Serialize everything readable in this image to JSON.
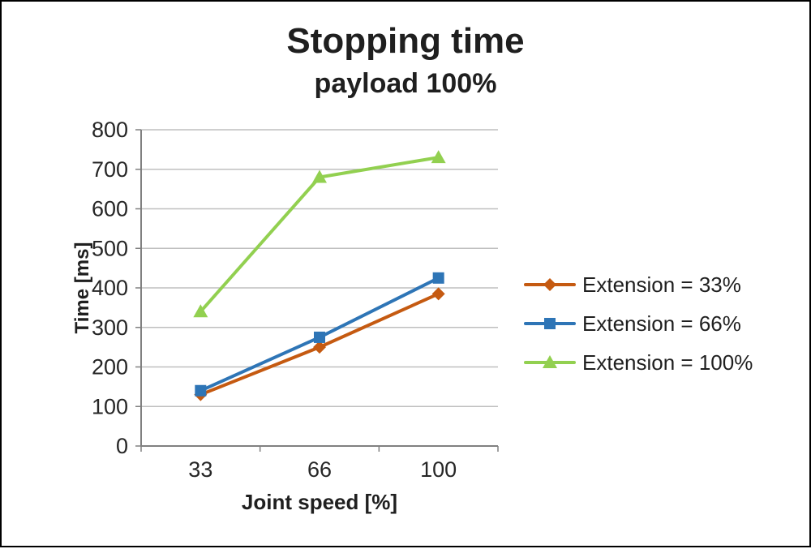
{
  "title": "Stopping time",
  "subtitle": "payload 100%",
  "chart_data": {
    "type": "line",
    "title": "Stopping time",
    "subtitle": "payload 100%",
    "xlabel": "Joint speed [%]",
    "ylabel": "Time [ms]",
    "categories": [
      "33",
      "66",
      "100"
    ],
    "series": [
      {
        "name": "Extension = 33%",
        "color": "#C55A11",
        "marker": "diamond",
        "values": [
          130,
          250,
          385
        ]
      },
      {
        "name": "Extension = 66%",
        "color": "#2E75B6",
        "marker": "square",
        "values": [
          140,
          275,
          425
        ]
      },
      {
        "name": "Extension = 100%",
        "color": "#92D050",
        "marker": "triangle",
        "values": [
          340,
          680,
          730
        ]
      }
    ],
    "ylim": [
      0,
      800
    ],
    "ytick_step": 100,
    "grid": true,
    "grid_color": "#BFBFBF",
    "axis_color": "#808080",
    "legend_position": "right"
  }
}
